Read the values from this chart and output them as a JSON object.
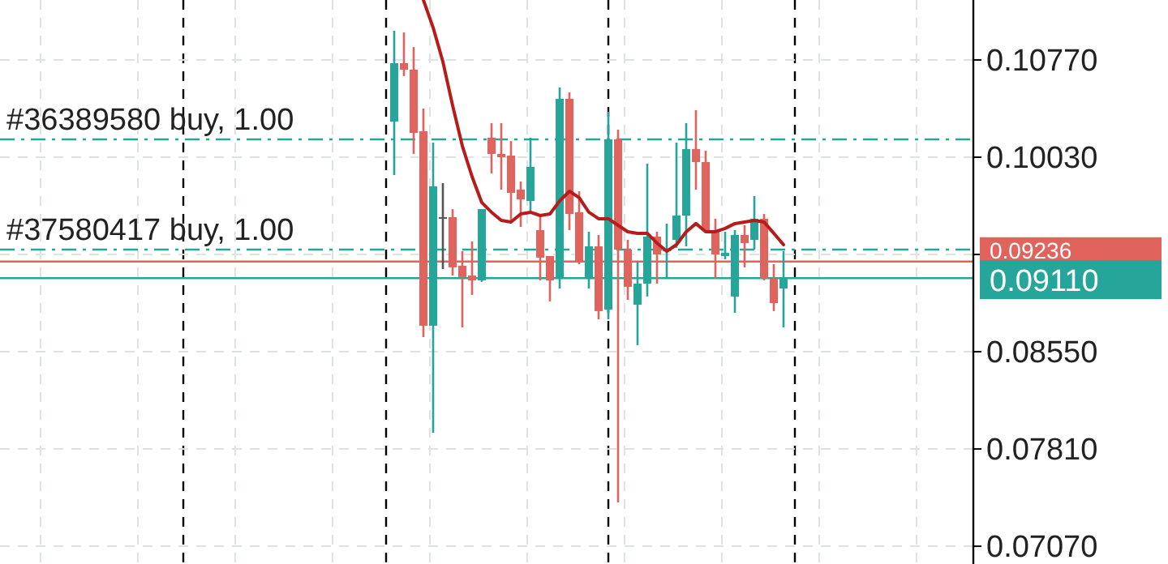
{
  "chart_data": {
    "type": "candlestick",
    "categories": [
      null,
      null,
      null,
      null,
      null,
      null,
      null,
      null,
      null,
      null,
      null,
      null,
      null,
      null,
      null,
      null,
      null,
      null,
      null,
      null,
      null,
      null,
      null,
      null,
      null,
      null,
      null,
      null,
      null,
      null,
      null,
      null,
      null,
      null,
      null,
      null,
      null,
      null,
      null,
      null,
      null,
      null,
      null,
      null,
      null,
      null,
      null,
      null,
      null,
      null,
      null,
      null,
      null,
      null,
      null,
      null,
      null,
      null,
      null,
      null,
      null,
      null,
      null,
      null,
      null,
      null,
      null,
      null,
      null,
      null,
      null,
      null,
      null,
      null,
      null,
      null,
      null,
      null,
      null,
      null,
      null,
      null,
      null,
      null,
      null,
      null,
      null,
      null,
      null,
      null,
      null,
      null,
      null,
      null,
      null,
      null,
      null,
      null,
      null,
      null
    ],
    "ohlc": [
      null,
      null,
      null,
      null,
      null,
      null,
      null,
      null,
      null,
      null,
      null,
      null,
      null,
      null,
      null,
      null,
      null,
      null,
      null,
      null,
      null,
      null,
      null,
      null,
      null,
      null,
      null,
      null,
      null,
      null,
      null,
      null,
      null,
      null,
      null,
      null,
      null,
      null,
      null,
      null,
      [
        0.10301,
        0.10992,
        0.09894,
        0.10745
      ],
      [
        0.10745,
        0.10979,
        0.10647,
        0.10696
      ],
      [
        0.10696,
        0.10868,
        0.10055,
        0.10215
      ],
      [
        0.10227,
        0.104,
        0.08661,
        0.08748
      ],
      [
        0.08748,
        0.10141,
        0.07934,
        0.09808
      ],
      [
        0.09568,
        0.09833,
        0.09179,
        0.09574
      ],
      [
        0.09574,
        0.09635,
        0.0913,
        0.09192
      ],
      [
        0.09204,
        0.09315,
        0.08735,
        0.09118
      ],
      [
        0.0913,
        0.09389,
        0.08982,
        0.09093
      ],
      [
        0.09093,
        0.09635,
        0.09081,
        0.09635
      ],
      [
        0.10178,
        0.10289,
        0.09907,
        0.10055
      ],
      [
        0.10055,
        0.10289,
        0.09783,
        0.1003
      ],
      [
        0.10042,
        0.10153,
        0.09537,
        0.09759
      ],
      [
        0.09783,
        0.09845,
        0.095,
        0.09709
      ],
      [
        0.09697,
        0.10178,
        0.09623,
        0.09956
      ],
      [
        0.09475,
        0.09586,
        0.09093,
        0.09266
      ],
      [
        0.09278,
        0.09278,
        0.08933,
        0.09093
      ],
      [
        0.09105,
        0.1056,
        0.09031,
        0.10474
      ],
      [
        0.10474,
        0.10523,
        0.09475,
        0.09598
      ],
      [
        0.09611,
        0.09771,
        0.09216,
        0.09229
      ],
      [
        0.09105,
        0.09463,
        0.09031,
        0.09352
      ],
      [
        0.09352,
        0.09438,
        0.08797,
        0.08859
      ],
      [
        0.08871,
        0.10375,
        0.08797,
        0.10166
      ],
      [
        0.10166,
        0.1024,
        0.07404,
        0.09327
      ],
      [
        0.09327,
        0.09401,
        0.08945,
        0.09044
      ],
      [
        0.08908,
        0.09229,
        0.086,
        0.09068
      ],
      [
        0.09068,
        0.09981,
        0.0897,
        0.09426
      ],
      [
        0.09426,
        0.09463,
        0.09068,
        0.0929
      ],
      [
        0.09315,
        0.09525,
        0.09105,
        0.09327
      ],
      [
        0.09401,
        0.10141,
        0.0934,
        0.09586
      ],
      [
        0.09586,
        0.10289,
        0.09352,
        0.10092
      ],
      [
        0.10092,
        0.10388,
        0.09783,
        0.09993
      ],
      [
        0.09993,
        0.10079,
        0.09463,
        0.09475
      ],
      [
        0.09463,
        0.09562,
        0.09105,
        0.0929
      ],
      [
        0.09278,
        0.09463,
        0.09253,
        0.09303
      ],
      [
        0.0897,
        0.09475,
        0.08846,
        0.09438
      ],
      [
        0.09438,
        0.09512,
        0.09192,
        0.09377
      ],
      [
        0.09401,
        0.09734,
        0.09327,
        0.09562
      ],
      [
        0.09562,
        0.09598,
        0.09093,
        0.09105
      ],
      [
        0.09105,
        0.09216,
        0.08859,
        0.0892
      ],
      [
        0.09031,
        0.09315,
        0.08735,
        0.09105
      ],
      null,
      null,
      null,
      null,
      null,
      null,
      null,
      null,
      null,
      null,
      null,
      null,
      null,
      null,
      null,
      null,
      null,
      null,
      null
    ],
    "colors": [
      null,
      null,
      null,
      null,
      null,
      null,
      null,
      null,
      null,
      null,
      null,
      null,
      null,
      null,
      null,
      null,
      null,
      null,
      null,
      null,
      null,
      null,
      null,
      null,
      null,
      null,
      null,
      null,
      null,
      null,
      null,
      null,
      null,
      null,
      null,
      null,
      null,
      null,
      null,
      null,
      "#26a69a",
      "#e0635d",
      "#e0635d",
      "#e0635d",
      "#26a69a",
      "#555555",
      "#e0635d",
      "#e0635d",
      "#e0635d",
      "#26a69a",
      "#e0635d",
      "#e0635d",
      "#e0635d",
      "#e0635d",
      "#26a69a",
      "#e0635d",
      "#e0635d",
      "#26a69a",
      "#e0635d",
      "#e0635d",
      "#26a69a",
      "#e0635d",
      "#26a69a",
      "#e0635d",
      "#e0635d",
      "#26a69a",
      "#26a69a",
      "#e0635d",
      "#26a69a",
      "#26a69a",
      "#26a69a",
      "#e0635d",
      "#e0635d",
      "#e0635d",
      "#26a69a",
      "#26a69a",
      "#e0635d",
      "#26a69a",
      "#e0635d",
      "#e0635d",
      "#26a69a",
      null,
      null,
      null,
      null,
      null,
      null,
      null,
      null,
      null,
      null,
      null,
      null,
      null,
      null,
      null,
      null,
      null,
      null,
      null
    ],
    "series": [
      {
        "type": "line",
        "color": "#b71c1c",
        "values": [
          null,
          null,
          null,
          null,
          null,
          null,
          null,
          null,
          null,
          null,
          null,
          null,
          null,
          null,
          null,
          null,
          null,
          null,
          null,
          null,
          null,
          null,
          null,
          null,
          null,
          null,
          null,
          null,
          null,
          null,
          null,
          null,
          null,
          null,
          null,
          null,
          null,
          null,
          null,
          null,
          null,
          null,
          null,
          0.11226,
          0.11016,
          0.10757,
          0.10424,
          0.10116,
          0.09882,
          0.09685,
          0.09611,
          0.09549,
          0.09537,
          0.09598,
          0.09611,
          0.09586,
          0.09598,
          0.09697,
          0.09771,
          0.09722,
          0.09611,
          0.09562,
          0.09562,
          0.09512,
          0.09463,
          0.09451,
          0.09451,
          0.09377,
          0.09315,
          0.09364,
          0.09463,
          0.09525,
          0.09463,
          0.09463,
          0.09488,
          0.09525,
          0.09537,
          0.09549,
          0.09537,
          0.09451,
          0.09364,
          null,
          null,
          null,
          null,
          null,
          null,
          null,
          null,
          null,
          null,
          null,
          null,
          null,
          null,
          null,
          null,
          null,
          null,
          null
        ]
      }
    ],
    "ylim": [
      0.06935,
      0.11226
    ],
    "yticks": [
      {
        "value": 0.1077,
        "label": "0.10770"
      },
      {
        "value": 0.1003,
        "label": "0.10030"
      },
      {
        "value": 0.0929,
        "label": null
      },
      {
        "value": 0.0855,
        "label": "0.08550"
      },
      {
        "value": 0.0781,
        "label": "0.07810"
      },
      {
        "value": 0.0707,
        "label": "0.07070"
      }
    ],
    "tick_labels": "y",
    "grid": true,
    "ref_lines": [
      {
        "axis": "y",
        "value": 0.10166,
        "label": "#36389580 buy, 1.00",
        "color": "#26a69a",
        "line_style": "dashed"
      },
      {
        "axis": "y",
        "value": 0.09327,
        "label": "#37580417 buy, 1.00",
        "color": "#26a69a",
        "line_style": "dashed"
      },
      {
        "axis": "y",
        "value": 0.09236,
        "label": "0.09236",
        "color": "#e0635d",
        "line_style": "solid"
      },
      {
        "axis": "y",
        "value": 0.0911,
        "label": "0.09110",
        "color": "#26a69a",
        "line_style": "solid"
      }
    ]
  }
}
